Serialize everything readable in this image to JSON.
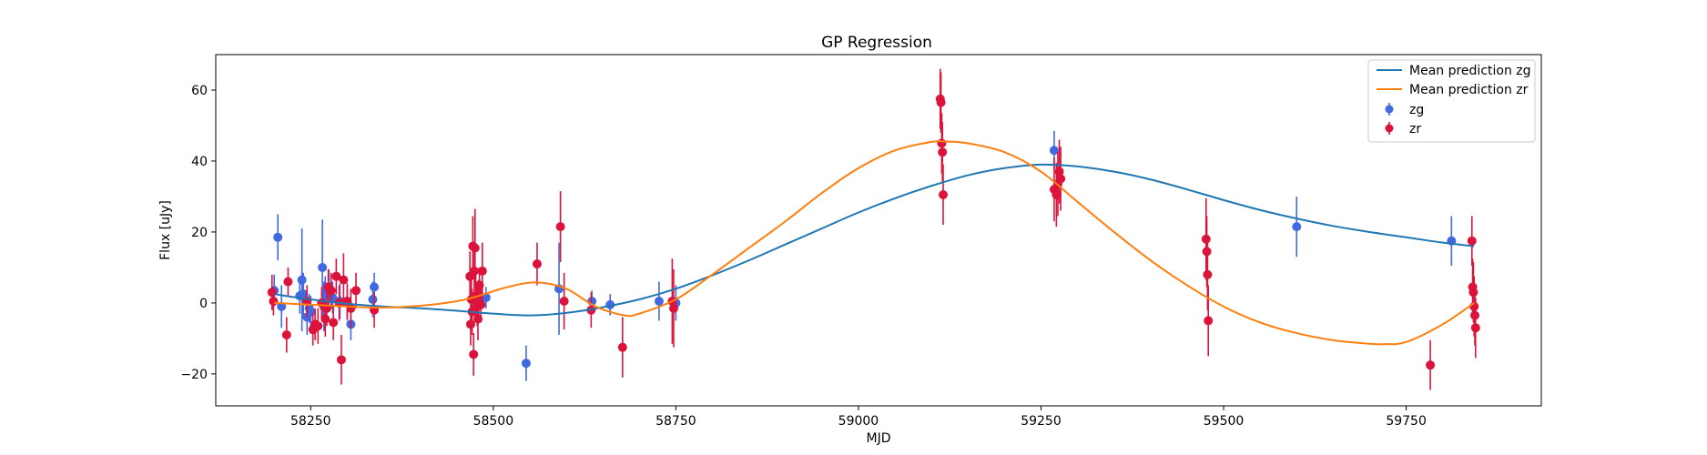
{
  "chart_data": {
    "type": "scatter",
    "title": "GP Regression",
    "xlabel": "MJD",
    "ylabel": "Flux [uJy]",
    "xlim": [
      58120,
      59935
    ],
    "ylim": [
      -29,
      70
    ],
    "xticks": [
      58250,
      58500,
      58750,
      59000,
      59250,
      59500,
      59750
    ],
    "yticks": [
      -20,
      0,
      20,
      40,
      60
    ],
    "xtick_labels": [
      "58250",
      "58500",
      "58750",
      "59000",
      "59250",
      "59500",
      "59750"
    ],
    "ytick_labels": [
      "−20",
      "0",
      "20",
      "40",
      "60"
    ],
    "grid": false,
    "legend": {
      "position": "top-right",
      "entries": [
        "Mean prediction zg",
        "Mean prediction zr",
        "zg",
        "zr"
      ]
    },
    "lines": [
      {
        "name": "Mean prediction zg",
        "color": "#1f77b4",
        "x": [
          58200,
          58250,
          58300,
          58350,
          58400,
          58450,
          58500,
          58550,
          58600,
          58650,
          58700,
          58750,
          58800,
          58850,
          58900,
          58950,
          59000,
          59050,
          59100,
          59150,
          59200,
          59250,
          59300,
          59350,
          59400,
          59450,
          59500,
          59550,
          59600,
          59650,
          59700,
          59750,
          59800,
          59843
        ],
        "y": [
          2.5,
          1.0,
          -0.2,
          -1.0,
          -1.5,
          -2.2,
          -3.0,
          -3.5,
          -2.8,
          -1.2,
          1.0,
          4.0,
          7.8,
          12.0,
          16.5,
          21.0,
          25.5,
          29.5,
          33.0,
          36.0,
          38.0,
          39.0,
          38.5,
          37.0,
          34.8,
          32.0,
          29.0,
          26.2,
          23.8,
          21.7,
          20.0,
          18.5,
          17.0,
          16.0
        ]
      },
      {
        "name": "Mean prediction zr",
        "color": "#ff7f0e",
        "x": [
          58200,
          58250,
          58300,
          58350,
          58400,
          58450,
          58480,
          58520,
          58560,
          58600,
          58640,
          58680,
          58700,
          58750,
          58800,
          58850,
          58900,
          58950,
          59000,
          59050,
          59100,
          59120,
          59150,
          59200,
          59250,
          59300,
          59350,
          59400,
          59450,
          59500,
          59550,
          59600,
          59650,
          59700,
          59720,
          59750,
          59800,
          59843
        ],
        "y": [
          0.0,
          -0.5,
          -1.0,
          -1.3,
          -0.8,
          0.5,
          2.0,
          4.5,
          5.8,
          4.0,
          -1.0,
          -3.5,
          -3.0,
          1.0,
          8.0,
          15.5,
          23.0,
          31.0,
          38.0,
          43.0,
          45.4,
          45.5,
          45.0,
          42.5,
          37.0,
          28.5,
          20.0,
          12.0,
          5.0,
          -1.0,
          -5.5,
          -8.5,
          -10.5,
          -11.5,
          -11.6,
          -11.0,
          -6.0,
          0.0
        ]
      }
    ],
    "series": [
      {
        "name": "zg",
        "color": "#4169e1",
        "x": [
          58200,
          58205,
          58210,
          58235,
          58238,
          58240,
          58245,
          58248,
          58250,
          58266,
          58268,
          58270,
          58275,
          58280,
          58290,
          58300,
          58305,
          58335,
          58337,
          58490,
          58545,
          58590,
          58635,
          58660,
          58727,
          58750,
          59268,
          59600,
          59812
        ],
        "y": [
          3.5,
          18.5,
          -1.0,
          2.0,
          6.5,
          2.5,
          -4.0,
          -1.5,
          -2.5,
          10.0,
          -1.0,
          2.5,
          4.5,
          1.5,
          0.5,
          0.0,
          -6.0,
          1.0,
          4.5,
          1.5,
          -17.0,
          4.0,
          0.5,
          -0.5,
          0.5,
          0.0,
          43.0,
          21.5,
          17.5
        ],
        "err": [
          4.5,
          6.5,
          6.0,
          5.0,
          14.5,
          6.0,
          5.0,
          4.0,
          4.5,
          13.5,
          7.0,
          5.0,
          5.0,
          4.5,
          5.0,
          5.0,
          4.5,
          5.0,
          4.0,
          3.0,
          5.0,
          13.0,
          3.0,
          3.0,
          5.5,
          5.0,
          5.5,
          8.5,
          7.0
        ]
      },
      {
        "name": "zr",
        "color": "#dc143c",
        "x": [
          58197,
          58199,
          58217,
          58219,
          58245,
          58253,
          58256,
          58260,
          58265,
          58270,
          58272,
          58274,
          58278,
          58281,
          58285,
          58289,
          58292,
          58295,
          58300,
          58305,
          58312,
          58337,
          58468,
          58469,
          58470,
          58471,
          58472,
          58473,
          58474,
          58475,
          58476,
          58477,
          58478,
          58479,
          58480,
          58481,
          58483,
          58485,
          58560,
          58592,
          58597,
          58634,
          58677,
          58745,
          58747,
          59112,
          59113,
          59114,
          59115,
          59116,
          59268,
          59271,
          59273,
          59275,
          59277,
          59476,
          59477,
          59478,
          59479,
          59783,
          59840,
          59841,
          59842,
          59843,
          59844,
          59845
        ],
        "y": [
          3.0,
          0.5,
          -9.0,
          6.0,
          0.5,
          -7.5,
          -6.0,
          -6.5,
          0.0,
          -4.5,
          -1.5,
          4.5,
          3.5,
          -5.5,
          7.5,
          0.0,
          -16.0,
          6.5,
          0.5,
          -1.5,
          3.5,
          -2.0,
          7.5,
          -6.0,
          1.0,
          -2.5,
          16.0,
          -14.5,
          9.0,
          15.5,
          2.0,
          0.5,
          -1.0,
          -4.5,
          1.5,
          5.0,
          -0.5,
          9.0,
          11.0,
          21.5,
          0.5,
          -2.0,
          -12.5,
          0.5,
          -1.5,
          57.5,
          56.5,
          45.0,
          42.5,
          30.5,
          32.0,
          30.5,
          33.5,
          37.0,
          35.0,
          18.0,
          14.5,
          8.0,
          -5.0,
          -17.5,
          17.5,
          4.5,
          3.0,
          -1.0,
          -3.5,
          -7.0
        ],
        "err": [
          5.0,
          4.0,
          5.0,
          4.0,
          4.5,
          4.5,
          4.5,
          5.0,
          4.5,
          5.0,
          5.0,
          5.0,
          5.0,
          5.0,
          5.0,
          5.0,
          7.0,
          7.5,
          5.0,
          5.5,
          5.0,
          5.0,
          7.0,
          6.0,
          6.5,
          6.5,
          8.5,
          6.0,
          8.0,
          11.0,
          6.0,
          5.0,
          5.5,
          6.0,
          5.0,
          5.0,
          5.0,
          8.0,
          6.0,
          10.0,
          8.0,
          5.0,
          8.5,
          12.0,
          11.0,
          8.5,
          8.5,
          8.5,
          8.5,
          8.5,
          9.0,
          9.0,
          9.0,
          9.0,
          9.0,
          11.5,
          10.0,
          10.0,
          10.0,
          7.0,
          7.0,
          8.0,
          8.5,
          8.5,
          8.5,
          8.5
        ]
      }
    ]
  }
}
